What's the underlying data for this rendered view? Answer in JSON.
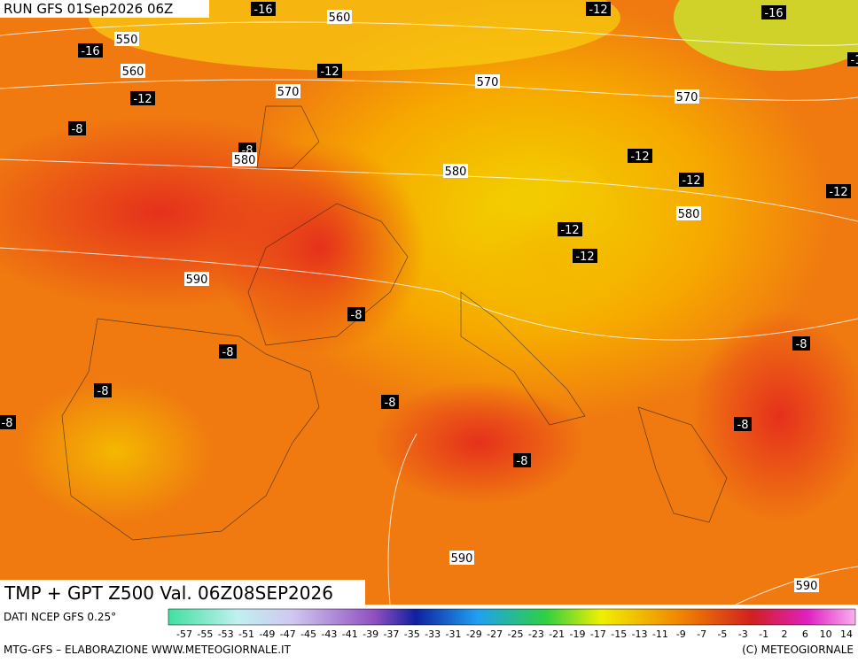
{
  "header": {
    "run": "RUN GFS 01Sep2026 06Z",
    "title": "TMP + GPT Z500 Val. 06Z08SEP2026"
  },
  "map_labels": [
    "-16",
    "560",
    "-12",
    "-16",
    "550",
    "-16",
    "560",
    "-12",
    "570",
    "570",
    "570",
    "-12",
    "-8",
    "-8",
    "580",
    "-12",
    "-12",
    "-12",
    "580",
    "580",
    "-12",
    "-12",
    "590",
    "-8",
    "-8",
    "-8",
    "-8",
    "-8",
    "-8",
    "-8",
    "-8",
    "590",
    "590",
    "-1"
  ],
  "legend": {
    "source": "DATI NCEP GFS 0.25°",
    "ticks": [
      "-57",
      "-55",
      "-53",
      "-51",
      "-49",
      "-47",
      "-45",
      "-43",
      "-41",
      "-39",
      "-37",
      "-35",
      "-33",
      "-31",
      "-29",
      "-27",
      "-25",
      "-23",
      "-21",
      "-19",
      "-17",
      "-15",
      "-13",
      "-11",
      "-9",
      "-7",
      "-5",
      "-3",
      "-1",
      "2",
      "6",
      "10",
      "14"
    ]
  },
  "footer": {
    "left": "MTG-GFS – ELABORAZIONE WWW.METEOGIORNALE.IT",
    "right": "(C) METEOGIORNALE"
  }
}
